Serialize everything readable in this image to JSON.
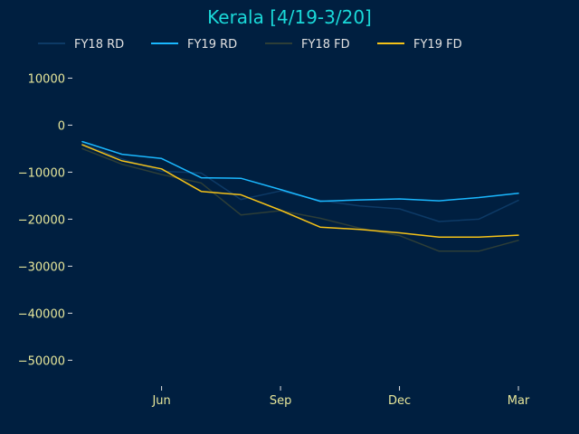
{
  "chart_data": {
    "type": "line",
    "title": "Kerala [4/19-3/20]",
    "xlabel": "",
    "ylabel": "",
    "x": [
      1,
      2,
      3,
      4,
      5,
      6,
      7,
      8,
      9,
      10,
      11,
      12
    ],
    "x_ticks": [
      {
        "value": 3,
        "label": "Jun"
      },
      {
        "value": 6,
        "label": "Sep"
      },
      {
        "value": 9,
        "label": "Dec"
      },
      {
        "value": 12,
        "label": "Mar"
      }
    ],
    "xlim": [
      0.75,
      13.3
    ],
    "ylim": [
      -55500,
      14500
    ],
    "y_ticks": [
      10000,
      0,
      -10000,
      -20000,
      -30000,
      -40000,
      -50000
    ],
    "y_tick_labels": [
      "10000",
      "0",
      "−10000",
      "−20000",
      "−30000",
      "−40000",
      "−50000"
    ],
    "grid": false,
    "legend_position": "top",
    "series": [
      {
        "name": "FY18 RD",
        "color": "#0d3a66",
        "width": 1.5,
        "values": [
          -4000,
          -7200,
          -9800,
          -10200,
          -15800,
          -14000,
          -16000,
          -17200,
          -17800,
          -20500,
          -20000,
          -16000
        ]
      },
      {
        "name": "FY19 RD",
        "color": "#1ab8ff",
        "width": 1.5,
        "values": [
          -3500,
          -6200,
          -7100,
          -11200,
          -11300,
          -13700,
          -16200,
          -15900,
          -15700,
          -16100,
          -15400,
          -14500
        ]
      },
      {
        "name": "FY18 FD",
        "color": "#2d3e37",
        "width": 1.5,
        "values": [
          -5000,
          -8300,
          -10500,
          -12300,
          -19100,
          -18200,
          -19800,
          -21900,
          -23500,
          -26800,
          -26800,
          -24500
        ]
      },
      {
        "name": "FY19 FD",
        "color": "#f5c218",
        "width": 1.5,
        "values": [
          -4200,
          -7600,
          -9300,
          -14100,
          -14800,
          -18100,
          -21700,
          -22200,
          -22900,
          -23800,
          -23800,
          -23400
        ]
      }
    ]
  }
}
